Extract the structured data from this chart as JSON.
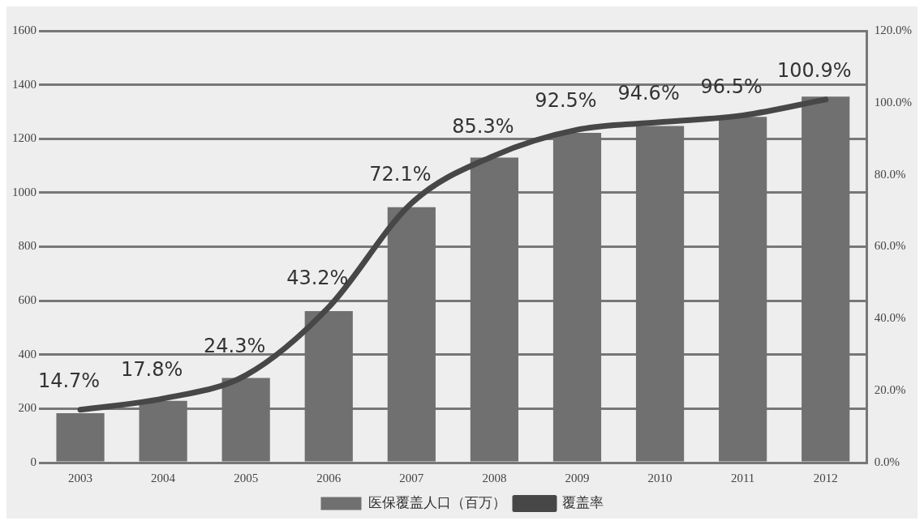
{
  "chart_data": {
    "type": "bar",
    "categories": [
      "2003",
      "2004",
      "2005",
      "2006",
      "2007",
      "2008",
      "2009",
      "2010",
      "2011",
      "2012"
    ],
    "series": [
      {
        "name": "医保覆盖人口（百万）",
        "color": "#707070",
        "values": [
          183,
          229,
          314,
          561,
          946,
          1130,
          1222,
          1247,
          1281,
          1356
        ]
      },
      {
        "name": "覆盖率",
        "type": "line",
        "axis": "y2",
        "color": "#474747",
        "values": [
          14.7,
          17.8,
          24.3,
          43.2,
          72.1,
          85.3,
          92.5,
          94.6,
          96.5,
          100.9
        ],
        "value_labels": [
          "14.7%",
          "17.8%",
          "24.3%",
          "43.2%",
          "72.1%",
          "85.3%",
          "92.5%",
          "94.6%",
          "96.5%",
          "100.9%"
        ]
      }
    ],
    "ylim": [
      0,
      1600
    ],
    "yticks": [
      0,
      200,
      400,
      600,
      800,
      1000,
      1200,
      1400,
      1600
    ],
    "y2lim": [
      0,
      120
    ],
    "y2ticks": [
      {
        "value": 0,
        "label": "0.0%"
      },
      {
        "value": 20,
        "label": "20.0%"
      },
      {
        "value": 40,
        "label": "40.0%"
      },
      {
        "value": 60,
        "label": "60.0%"
      },
      {
        "value": 80,
        "label": "80.0%"
      },
      {
        "value": 100,
        "label": "100.0%"
      },
      {
        "value": 120,
        "label": "120.0%"
      }
    ],
    "grid": "y",
    "legend": "bottom",
    "marker": "none",
    "line_style": "solid"
  }
}
